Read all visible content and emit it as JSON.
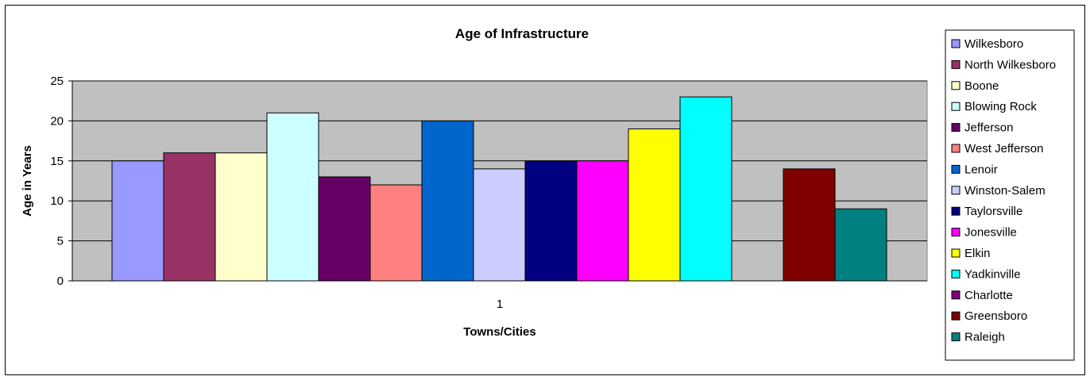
{
  "chart_data": {
    "type": "bar",
    "title": "Age of Infrastructure",
    "xlabel": "Towns/Cities",
    "ylabel": "Age in Years",
    "categories": [
      "1"
    ],
    "ylim": [
      0,
      25
    ],
    "yticks": [
      0,
      5,
      10,
      15,
      20,
      25
    ],
    "grid": true,
    "legend_position": "right",
    "plot_background": "#C0C0C0",
    "series": [
      {
        "name": "Wilkesboro",
        "values": [
          15
        ],
        "color": "#9999FF"
      },
      {
        "name": "North Wilkesboro",
        "values": [
          16
        ],
        "color": "#993366"
      },
      {
        "name": "Boone",
        "values": [
          16
        ],
        "color": "#FFFFCC"
      },
      {
        "name": "Blowing Rock",
        "values": [
          21
        ],
        "color": "#CCFFFF"
      },
      {
        "name": "Jefferson",
        "values": [
          13
        ],
        "color": "#660066"
      },
      {
        "name": "West Jefferson",
        "values": [
          12
        ],
        "color": "#FF8080"
      },
      {
        "name": "Lenoir",
        "values": [
          20
        ],
        "color": "#0066CC"
      },
      {
        "name": "Winston-Salem",
        "values": [
          14
        ],
        "color": "#CCCCFF"
      },
      {
        "name": "Taylorsville",
        "values": [
          15
        ],
        "color": "#000080"
      },
      {
        "name": "Jonesville",
        "values": [
          15
        ],
        "color": "#FF00FF"
      },
      {
        "name": "Elkin",
        "values": [
          19
        ],
        "color": "#FFFF00"
      },
      {
        "name": "Yadkinville",
        "values": [
          23
        ],
        "color": "#00FFFF"
      },
      {
        "name": "Charlotte",
        "values": [
          null
        ],
        "color": "#800080"
      },
      {
        "name": "Greensboro",
        "values": [
          14
        ],
        "color": "#800000"
      },
      {
        "name": "Raleigh",
        "values": [
          9
        ],
        "color": "#008080"
      }
    ]
  }
}
